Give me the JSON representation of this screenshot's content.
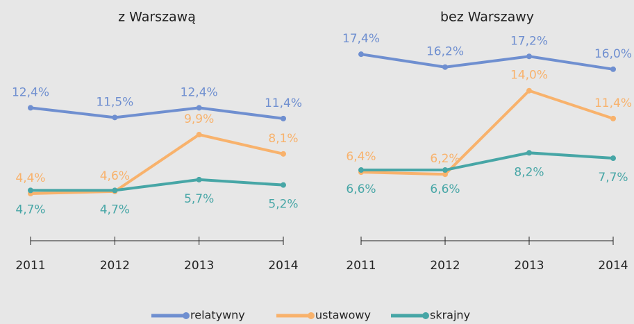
{
  "chart_data": [
    {
      "type": "line",
      "title": "z Warszawą",
      "categories": [
        "2011",
        "2012",
        "2013",
        "2014"
      ],
      "ylim": [
        0,
        20
      ],
      "series": [
        {
          "name": "relatywny",
          "color": "#6f8fd0",
          "values": [
            12.4,
            11.5,
            12.4,
            11.4
          ],
          "value_labels": [
            "12,4%",
            "11,5%",
            "12,4%",
            "11,4%"
          ]
        },
        {
          "name": "ustawowy",
          "color": "#f8b26c",
          "values": [
            4.4,
            4.6,
            9.9,
            8.1
          ],
          "value_labels": [
            "4,4%",
            "4,6%",
            "9,9%",
            "8,1%"
          ]
        },
        {
          "name": "skrajny",
          "color": "#47a6a6",
          "values": [
            4.7,
            4.7,
            5.7,
            5.2
          ],
          "value_labels": [
            "4,7%",
            "4,7%",
            "5,7%",
            "5,2%"
          ]
        }
      ]
    },
    {
      "type": "line",
      "title": "bez Warszawy",
      "categories": [
        "2011",
        "2012",
        "2013",
        "2014"
      ],
      "ylim": [
        0,
        20
      ],
      "series": [
        {
          "name": "relatywny",
          "color": "#6f8fd0",
          "values": [
            17.4,
            16.2,
            17.2,
            16.0
          ],
          "value_labels": [
            "17,4%",
            "16,2%",
            "17,2%",
            "16,0%"
          ]
        },
        {
          "name": "ustawowy",
          "color": "#f8b26c",
          "values": [
            6.4,
            6.2,
            14.0,
            11.4
          ],
          "value_labels": [
            "6,4%",
            "6,2%",
            "14,0%",
            "11,4%"
          ]
        },
        {
          "name": "skrajny",
          "color": "#47a6a6",
          "values": [
            6.6,
            6.6,
            8.2,
            7.7
          ],
          "value_labels": [
            "6,6%",
            "6,6%",
            "8,2%",
            "7,7%"
          ]
        }
      ]
    }
  ]
}
